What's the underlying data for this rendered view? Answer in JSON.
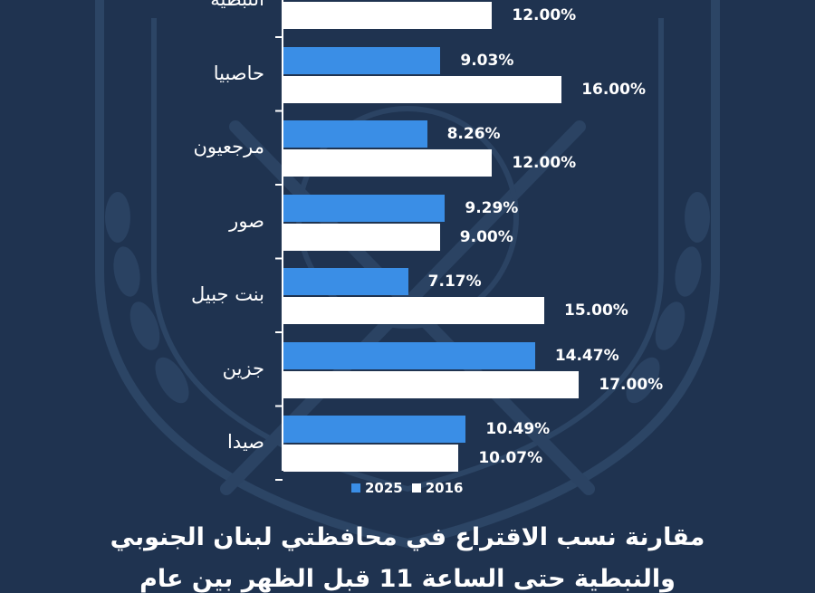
{
  "colors": {
    "background": "#1f3350",
    "series_2025": "#3a8ee6",
    "series_2016": "#ffffff",
    "axis": "#ffffff"
  },
  "chart_data": {
    "type": "bar",
    "orientation": "horizontal",
    "categories": [
      "النبطية",
      "حاصبيا",
      "مرجعيون",
      "صور",
      "بنت جبيل",
      "جزين",
      "صيدا"
    ],
    "series": [
      {
        "name": "2025",
        "values": [
          null,
          9.03,
          8.26,
          9.29,
          7.17,
          14.47,
          10.49
        ],
        "labels": [
          "",
          "9.03%",
          "8.26%",
          "9.29%",
          "7.17%",
          "14.47%",
          "10.49%"
        ]
      },
      {
        "name": "2016",
        "values": [
          12.0,
          16.0,
          12.0,
          9.0,
          15.0,
          17.0,
          10.07
        ],
        "labels": [
          "12.00%",
          "16.00%",
          "12.00%",
          "9.00%",
          "15.00%",
          "17.00%",
          "10.07%"
        ]
      }
    ],
    "legend": "bottom",
    "grid": false
  },
  "footer": {
    "line1": "مقارنة نسب الاقتراع في محافظتي لبنان الجنوبي",
    "line2": "والنبطية حتى الساعة 11 قبل الظهر بين عام"
  }
}
